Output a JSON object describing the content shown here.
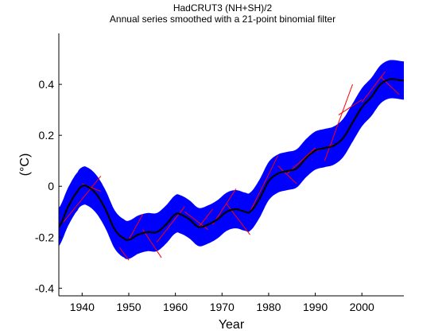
{
  "chart_data": {
    "type": "line",
    "title": "HadCRUT3 (NH+SH)/2",
    "subtitle": "Annual series smoothed with a 21-point binomial filter",
    "xlabel": "Year",
    "ylabel": "(°C)",
    "xlim": [
      1935,
      2009
    ],
    "ylim": [
      -0.43,
      0.6
    ],
    "xticks": [
      1940,
      1950,
      1960,
      1970,
      1980,
      1990,
      2000
    ],
    "yticks": [
      -0.4,
      -0.2,
      0,
      0.2,
      0.4
    ],
    "ytick_labels": [
      "-0.4",
      "-0.2",
      "0",
      "0.2",
      "0.4"
    ],
    "grid": false,
    "colors": {
      "band": "#0000ff",
      "smoothed_line": "#000000",
      "segments": "#ff0000"
    },
    "series": [
      {
        "x": [
          1935,
          1937,
          1939,
          1940,
          1941,
          1943,
          1945,
          1947,
          1949,
          1950,
          1952,
          1954,
          1956,
          1958,
          1960,
          1961,
          1963,
          1965,
          1967,
          1969,
          1971,
          1973,
          1975,
          1976,
          1978,
          1980,
          1982,
          1984,
          1986,
          1988,
          1990,
          1992,
          1994,
          1996,
          1998,
          2000,
          2002,
          2004,
          2006,
          2009
        ],
        "values": [
          -0.16,
          -0.08,
          -0.02,
          0.0,
          0.0,
          -0.03,
          -0.09,
          -0.17,
          -0.205,
          -0.21,
          -0.19,
          -0.18,
          -0.18,
          -0.15,
          -0.11,
          -0.11,
          -0.13,
          -0.16,
          -0.15,
          -0.13,
          -0.1,
          -0.09,
          -0.1,
          -0.1,
          -0.05,
          0.02,
          0.05,
          0.06,
          0.07,
          0.11,
          0.14,
          0.15,
          0.16,
          0.19,
          0.25,
          0.31,
          0.35,
          0.4,
          0.42,
          0.415
        ],
        "band_halfwidth": 0.075
      }
    ],
    "segments": [
      {
        "x": [
          1936,
          1944
        ],
        "y": [
          -0.14,
          0.04
        ]
      },
      {
        "x": [
          1940,
          1944
        ],
        "y": [
          0.01,
          -0.02
        ]
      },
      {
        "x": [
          1948,
          1950
        ],
        "y": [
          -0.24,
          -0.29
        ]
      },
      {
        "x": [
          1950,
          1953
        ],
        "y": [
          -0.21,
          -0.11
        ]
      },
      {
        "x": [
          1953,
          1957
        ],
        "y": [
          -0.17,
          -0.28
        ]
      },
      {
        "x": [
          1956,
          1962
        ],
        "y": [
          -0.22,
          -0.08
        ]
      },
      {
        "x": [
          1962,
          1967
        ],
        "y": [
          -0.1,
          -0.17
        ]
      },
      {
        "x": [
          1965,
          1968
        ],
        "y": [
          -0.16,
          -0.09
        ]
      },
      {
        "x": [
          1968,
          1973
        ],
        "y": [
          -0.15,
          -0.01
        ]
      },
      {
        "x": [
          1971,
          1976
        ],
        "y": [
          -0.07,
          -0.19
        ]
      },
      {
        "x": [
          1976,
          1982
        ],
        "y": [
          -0.1,
          0.12
        ]
      },
      {
        "x": [
          1982,
          1986
        ],
        "y": [
          0.08,
          0.01
        ]
      },
      {
        "x": [
          1984,
          1990
        ],
        "y": [
          0.05,
          0.15
        ]
      },
      {
        "x": [
          1989,
          1995
        ],
        "y": [
          0.13,
          0.17
        ]
      },
      {
        "x": [
          1992,
          1998
        ],
        "y": [
          0.1,
          0.4
        ]
      },
      {
        "x": [
          1995,
          2000
        ],
        "y": [
          0.28,
          0.34
        ]
      },
      {
        "x": [
          2000,
          2005
        ],
        "y": [
          0.33,
          0.45
        ]
      },
      {
        "x": [
          2004,
          2008
        ],
        "y": [
          0.43,
          0.36
        ]
      }
    ]
  }
}
